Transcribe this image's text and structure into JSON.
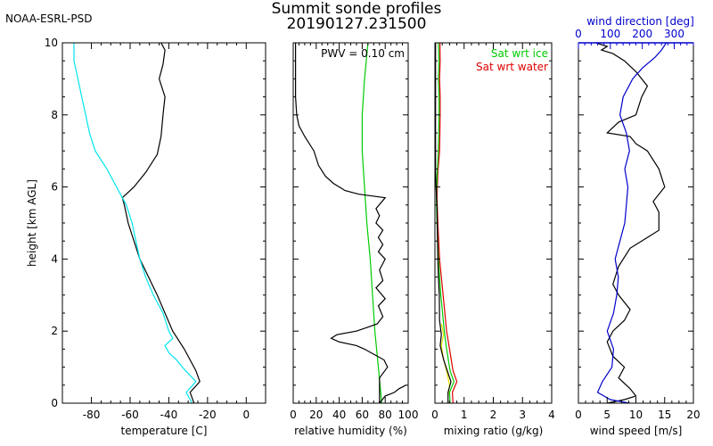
{
  "header": {
    "agency": "NOAA-ESRL-PSD",
    "title_line1": "Summit sonde profiles",
    "title_line2": "20190127.231500"
  },
  "colors": {
    "axis": "#000000",
    "cyan": "#00e5ee",
    "green": "#00cc00",
    "red": "#dd0000",
    "yellow": "#e6e600",
    "blue": "#0000cc"
  },
  "chart_data": [
    {
      "type": "line",
      "id": "temperature",
      "xlabel": "temperature [C]",
      "ylabel": "height [km AGL]",
      "xlim": [
        -95,
        10
      ],
      "ylim": [
        0,
        10
      ],
      "xticks": [
        -80,
        -60,
        -40,
        -20,
        0
      ],
      "yticks": [
        0,
        2,
        4,
        6,
        8,
        10
      ],
      "series": [
        {
          "color": "#000000",
          "points": [
            [
              -27,
              0
            ],
            [
              -29,
              0.3
            ],
            [
              -24,
              0.6
            ],
            [
              -26,
              0.9
            ],
            [
              -32,
              1.5
            ],
            [
              -38,
              2.0
            ],
            [
              -46,
              3.0
            ],
            [
              -55,
              4.0
            ],
            [
              -58,
              4.5
            ],
            [
              -61,
              5.0
            ],
            [
              -63,
              5.5
            ],
            [
              -64,
              5.7
            ],
            [
              -58,
              6.0
            ],
            [
              -52,
              6.4
            ],
            [
              -46,
              6.9
            ],
            [
              -44,
              7.4
            ],
            [
              -43,
              8.0
            ],
            [
              -42,
              8.5
            ],
            [
              -45,
              9.0
            ],
            [
              -43,
              9.4
            ],
            [
              -42,
              9.8
            ],
            [
              -44,
              10.0
            ]
          ]
        },
        {
          "color": "#00e5ee",
          "points": [
            [
              -28,
              0
            ],
            [
              -31,
              0.3
            ],
            [
              -26,
              0.6
            ],
            [
              -33,
              1.0
            ],
            [
              -36,
              1.2
            ],
            [
              -40,
              1.4
            ],
            [
              -42,
              1.6
            ],
            [
              -38,
              1.8
            ],
            [
              -40,
              2.0
            ],
            [
              -43,
              2.5
            ],
            [
              -48,
              3.0
            ],
            [
              -52,
              3.5
            ],
            [
              -55,
              4.0
            ],
            [
              -57,
              4.5
            ],
            [
              -59,
              5.0
            ],
            [
              -62,
              5.5
            ],
            [
              -65,
              5.8
            ],
            [
              -72,
              6.5
            ],
            [
              -78,
              7.0
            ],
            [
              -81,
              7.5
            ],
            [
              -83,
              8.0
            ],
            [
              -85,
              8.5
            ],
            [
              -87,
              9.0
            ],
            [
              -89,
              9.5
            ],
            [
              -89,
              10.0
            ]
          ]
        }
      ]
    },
    {
      "type": "line",
      "id": "relative-humidity",
      "xlabel": "relative humidity (%)",
      "xlim": [
        0,
        100
      ],
      "ylim": [
        0,
        10
      ],
      "xticks": [
        0,
        20,
        40,
        60,
        80,
        100
      ],
      "yticks": [
        0,
        2,
        4,
        6,
        8,
        10
      ],
      "annotations": [
        {
          "text": "PWV = 0.10 cm",
          "color": "#000000"
        }
      ],
      "series": [
        {
          "color": "#00cc00",
          "points": [
            [
              77,
              0
            ],
            [
              74,
              1
            ],
            [
              71,
              2
            ],
            [
              69,
              3
            ],
            [
              67,
              4
            ],
            [
              64,
              5
            ],
            [
              62,
              6
            ],
            [
              60,
              7
            ],
            [
              60,
              8
            ],
            [
              62,
              9
            ],
            [
              65,
              10
            ]
          ]
        },
        {
          "color": "#000000",
          "points": [
            [
              98,
              0.5
            ],
            [
              92,
              0.4
            ],
            [
              88,
              0.3
            ],
            [
              84,
              0.25
            ],
            [
              80,
              0.2
            ],
            [
              75,
              0
            ],
            [
              75,
              0.7
            ],
            [
              82,
              1.0
            ],
            [
              79,
              1.2
            ],
            [
              62,
              1.5
            ],
            [
              55,
              1.6
            ],
            [
              40,
              1.7
            ],
            [
              33,
              1.8
            ],
            [
              38,
              1.9
            ],
            [
              55,
              2.0
            ],
            [
              64,
              2.1
            ],
            [
              73,
              2.2
            ],
            [
              78,
              2.4
            ],
            [
              74,
              2.7
            ],
            [
              80,
              2.9
            ],
            [
              72,
              3.2
            ],
            [
              78,
              3.4
            ],
            [
              75,
              3.7
            ],
            [
              80,
              4.0
            ],
            [
              74,
              4.2
            ],
            [
              78,
              4.4
            ],
            [
              74,
              4.6
            ],
            [
              78,
              4.8
            ],
            [
              72,
              5.0
            ],
            [
              75,
              5.2
            ],
            [
              72,
              5.4
            ],
            [
              80,
              5.7
            ],
            [
              57,
              5.8
            ],
            [
              45,
              5.9
            ],
            [
              35,
              6.1
            ],
            [
              28,
              6.3
            ],
            [
              22,
              6.6
            ],
            [
              18,
              7.0
            ],
            [
              10,
              7.4
            ],
            [
              5,
              7.7
            ],
            [
              3,
              8.0
            ],
            [
              2,
              8.5
            ],
            [
              2,
              9.0
            ],
            [
              2,
              10.0
            ]
          ]
        }
      ]
    },
    {
      "type": "line",
      "id": "mixing-ratio",
      "xlabel": "mixing ratio (g/kg)",
      "xlim": [
        0,
        4
      ],
      "ylim": [
        0,
        10
      ],
      "xticks": [
        0,
        1,
        2,
        3,
        4
      ],
      "yticks": [
        0,
        2,
        4,
        6,
        8,
        10
      ],
      "annotations": [
        {
          "text": "Sat wrt ice",
          "color": "#00cc00"
        },
        {
          "text": "Sat wrt water",
          "color": "#dd0000"
        }
      ],
      "series": [
        {
          "color": "#dd0000",
          "points": [
            [
              0.62,
              0
            ],
            [
              0.6,
              0.3
            ],
            [
              0.75,
              0.6
            ],
            [
              0.62,
              0.9
            ],
            [
              0.5,
              1.5
            ],
            [
              0.4,
              2.0
            ],
            [
              0.28,
              3.0
            ],
            [
              0.16,
              4.0
            ],
            [
              0.1,
              5.0
            ],
            [
              0.07,
              5.7
            ],
            [
              0.1,
              6.4
            ],
            [
              0.16,
              7.0
            ],
            [
              0.18,
              8.0
            ],
            [
              0.18,
              8.5
            ],
            [
              0.16,
              9.0
            ],
            [
              0.18,
              9.5
            ],
            [
              0.17,
              10.0
            ]
          ]
        },
        {
          "color": "#00cc00",
          "points": [
            [
              0.52,
              0
            ],
            [
              0.5,
              0.3
            ],
            [
              0.65,
              0.6
            ],
            [
              0.52,
              0.9
            ],
            [
              0.4,
              1.5
            ],
            [
              0.32,
              2.0
            ],
            [
              0.2,
              3.0
            ],
            [
              0.12,
              4.0
            ],
            [
              0.07,
              5.0
            ],
            [
              0.05,
              5.7
            ],
            [
              0.08,
              6.4
            ],
            [
              0.12,
              7.0
            ],
            [
              0.14,
              8.0
            ],
            [
              0.14,
              8.5
            ],
            [
              0.12,
              9.0
            ],
            [
              0.14,
              9.5
            ],
            [
              0.12,
              10.0
            ]
          ]
        },
        {
          "color": "#e6e600",
          "points": [
            [
              0.45,
              0.2
            ],
            [
              0.5,
              0.5
            ],
            [
              0.4,
              0.9
            ],
            [
              0.3,
              1.2
            ],
            [
              0.22,
              1.6
            ],
            [
              0.3,
              1.9
            ],
            [
              0.22,
              2.2
            ]
          ]
        },
        {
          "color": "#000000",
          "points": [
            [
              0.45,
              0
            ],
            [
              0.45,
              0.3
            ],
            [
              0.55,
              0.6
            ],
            [
              0.42,
              0.9
            ],
            [
              0.3,
              1.2
            ],
            [
              0.18,
              1.6
            ],
            [
              0.22,
              1.9
            ],
            [
              0.16,
              2.3
            ],
            [
              0.15,
              3.0
            ],
            [
              0.12,
              3.5
            ],
            [
              0.1,
              4.0
            ],
            [
              0.09,
              4.5
            ],
            [
              0.08,
              5.0
            ],
            [
              0.07,
              5.5
            ],
            [
              0.04,
              6.0
            ],
            [
              0.02,
              6.5
            ],
            [
              0.02,
              7.0
            ],
            [
              0.02,
              8.0
            ],
            [
              0.02,
              9.0
            ],
            [
              0.02,
              10.0
            ]
          ]
        }
      ]
    },
    {
      "type": "line",
      "id": "wind",
      "xlabel": "wind speed [m/s]",
      "x2label": "wind direction [deg]",
      "xlim": [
        0,
        20
      ],
      "x2lim": [
        0,
        360
      ],
      "ylim": [
        0,
        10
      ],
      "xticks": [
        0,
        5,
        10,
        15,
        20
      ],
      "x2ticks": [
        0,
        100,
        200,
        300
      ],
      "yticks": [
        0,
        2,
        4,
        6,
        8,
        10
      ],
      "series": [
        {
          "color": "#000000",
          "axis": "bottom",
          "points": [
            [
              5,
              0
            ],
            [
              8,
              0.1
            ],
            [
              10,
              0.2
            ],
            [
              9,
              0.4
            ],
            [
              7,
              0.7
            ],
            [
              8,
              1.0
            ],
            [
              6,
              1.3
            ],
            [
              5,
              1.7
            ],
            [
              6,
              2.0
            ],
            [
              8,
              2.3
            ],
            [
              9,
              2.6
            ],
            [
              7,
              3.0
            ],
            [
              6,
              3.3
            ],
            [
              7,
              3.8
            ],
            [
              9,
              4.3
            ],
            [
              12,
              4.6
            ],
            [
              14,
              4.8
            ],
            [
              14,
              5.3
            ],
            [
              13,
              5.6
            ],
            [
              15,
              6.0
            ],
            [
              14,
              6.5
            ],
            [
              12,
              7.0
            ],
            [
              10,
              7.2
            ],
            [
              9,
              7.4
            ],
            [
              5,
              7.5
            ],
            [
              7,
              7.8
            ],
            [
              10,
              8.0
            ],
            [
              11,
              8.5
            ],
            [
              12,
              8.8
            ],
            [
              10,
              9.2
            ],
            [
              8,
              9.5
            ],
            [
              6,
              9.7
            ],
            [
              4,
              9.8
            ],
            [
              5,
              9.9
            ],
            [
              3,
              10.0
            ]
          ]
        },
        {
          "color": "#0000cc",
          "axis": "top",
          "points": [
            [
              160,
              0
            ],
            [
              100,
              0.1
            ],
            [
              60,
              0.3
            ],
            [
              75,
              0.6
            ],
            [
              105,
              1.0
            ],
            [
              110,
              1.5
            ],
            [
              90,
              2.0
            ],
            [
              110,
              2.5
            ],
            [
              120,
              3.0
            ],
            [
              125,
              3.5
            ],
            [
              115,
              4.0
            ],
            [
              130,
              4.5
            ],
            [
              145,
              5.0
            ],
            [
              150,
              5.5
            ],
            [
              155,
              6.0
            ],
            [
              145,
              6.5
            ],
            [
              160,
              7.0
            ],
            [
              150,
              7.5
            ],
            [
              130,
              8.0
            ],
            [
              140,
              8.5
            ],
            [
              170,
              9.0
            ],
            [
              200,
              9.3
            ],
            [
              240,
              9.6
            ],
            [
              260,
              9.8
            ],
            [
              275,
              10.0
            ]
          ]
        }
      ]
    }
  ]
}
